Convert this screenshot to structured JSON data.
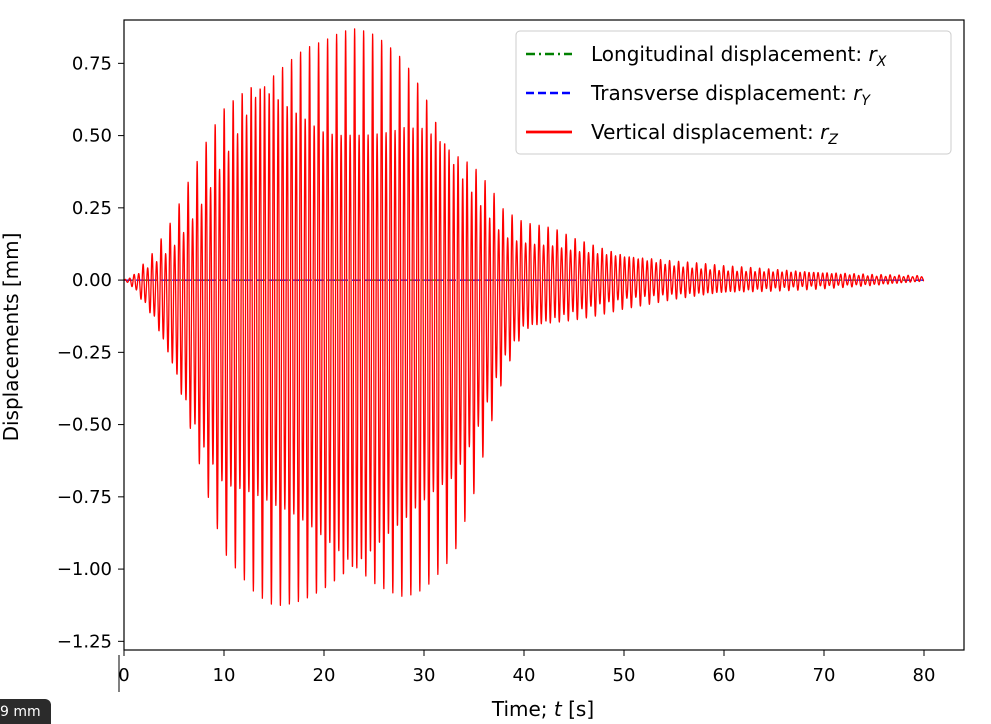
{
  "chart_data": {
    "type": "line",
    "title": "",
    "xlabel_prefix": "Time; ",
    "xlabel_var": "t",
    "xlabel_suffix": " [s]",
    "ylabel": "Displacements [mm]",
    "xlim": [
      0,
      84
    ],
    "ylim": [
      -1.28,
      0.9
    ],
    "xticks": [
      0,
      10,
      20,
      30,
      40,
      50,
      60,
      70,
      80
    ],
    "yticks": [
      0.75,
      0.5,
      0.25,
      0.0,
      -0.25,
      -0.5,
      -0.75,
      -1.0,
      -1.25
    ],
    "ytick_labels": [
      "0.75",
      "0.50",
      "0.25",
      "0.00",
      "−0.25",
      "−0.50",
      "−0.75",
      "−1.00",
      "−1.25"
    ],
    "xtick_labels": [
      "0",
      "10",
      "20",
      "30",
      "40",
      "50",
      "60",
      "70",
      "80"
    ],
    "grid": false,
    "legend_position": "top-right",
    "series": [
      {
        "name": "Longitudinal displacement: ",
        "var": "r",
        "sub": "X",
        "color": "#008000",
        "style": "dashdot",
        "oscillation": {
          "period_s": 0.45,
          "envelope_t": [
            0,
            80
          ],
          "envelope_upper": [
            0,
            0
          ],
          "envelope_lower": [
            0,
            0
          ]
        }
      },
      {
        "name": "Transverse displacement: ",
        "var": "r",
        "sub": "Y",
        "color": "#0000ff",
        "style": "dashed",
        "oscillation": {
          "period_s": 0.45,
          "envelope_t": [
            0,
            80
          ],
          "envelope_upper": [
            0,
            0
          ],
          "envelope_lower": [
            0,
            0
          ]
        }
      },
      {
        "name": "Vertical displacement: ",
        "var": "r",
        "sub": "Z",
        "color": "#ff0000",
        "style": "solid",
        "oscillation": {
          "period_s": 0.45,
          "envelope_t": [
            0,
            1,
            3,
            5,
            8,
            10,
            13,
            15,
            18,
            20,
            23,
            25,
            28,
            30,
            33,
            35,
            37,
            38,
            40,
            43,
            45,
            50,
            55,
            60,
            65,
            70,
            75,
            80
          ],
          "envelope_upper": [
            0.0,
            0.02,
            0.1,
            0.22,
            0.48,
            0.65,
            0.82,
            0.85,
            0.86,
            0.85,
            0.87,
            0.86,
            0.82,
            0.75,
            0.55,
            0.45,
            0.32,
            0.25,
            0.2,
            0.18,
            0.15,
            0.1,
            0.07,
            0.05,
            0.04,
            0.03,
            0.02,
            0.015
          ],
          "envelope_lower": [
            0.0,
            -0.03,
            -0.15,
            -0.35,
            -0.75,
            -0.97,
            -1.08,
            -1.13,
            -1.15,
            -1.16,
            -1.17,
            -1.17,
            -1.14,
            -1.08,
            -0.95,
            -0.75,
            -0.48,
            -0.35,
            -0.2,
            -0.17,
            -0.15,
            -0.1,
            -0.07,
            -0.05,
            -0.04,
            -0.03,
            -0.02,
            -0.005
          ]
        }
      }
    ]
  },
  "overlay": {
    "scale_badge": "9 mm"
  }
}
